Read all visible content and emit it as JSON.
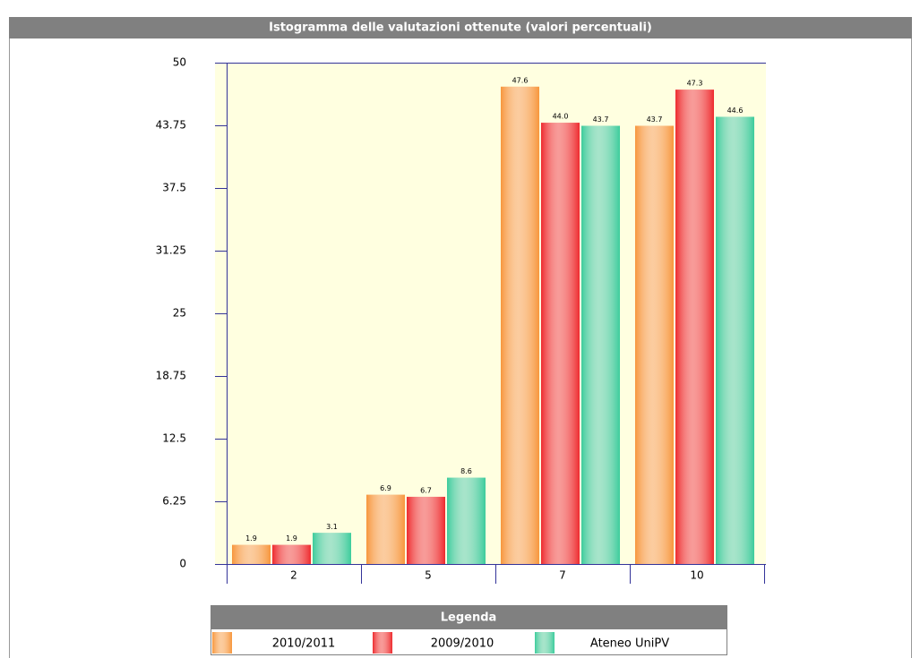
{
  "chart_data": {
    "type": "bar",
    "title": "Istogramma delle valutazioni ottenute (valori percentuali)",
    "legend_title": "Legenda",
    "categories": [
      "2",
      "5",
      "7",
      "10"
    ],
    "series": [
      {
        "name": "2010/2011",
        "color": "#f7963c",
        "values": [
          1.9,
          6.9,
          47.6,
          43.7
        ],
        "value_labels": [
          "1.9",
          "6.9",
          "47.6",
          "43.7"
        ]
      },
      {
        "name": "2009/2010",
        "color": "#ee2a2e",
        "values": [
          1.9,
          6.7,
          44.0,
          47.3
        ],
        "value_labels": [
          "1.9",
          "6.7",
          "44.0",
          "47.3"
        ]
      },
      {
        "name": "Ateneo UniPV",
        "color": "#3ccc9c",
        "values": [
          3.1,
          8.6,
          43.7,
          44.6
        ],
        "value_labels": [
          "3.1",
          "8.6",
          "43.7",
          "44.6"
        ]
      }
    ],
    "ylim": [
      0,
      50
    ],
    "yticks": [
      0,
      6.25,
      12.5,
      18.75,
      25,
      31.25,
      37.5,
      43.75,
      50
    ]
  }
}
